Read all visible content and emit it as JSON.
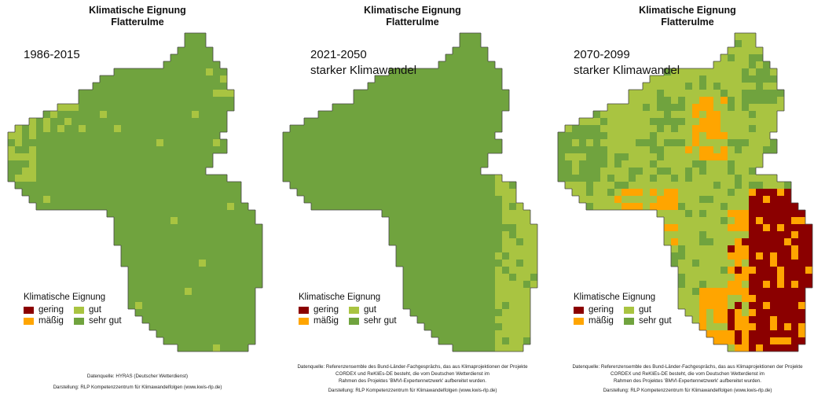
{
  "colors": {
    "gering": "#8b0000",
    "maessig": "#ffa500",
    "gut": "#a9c441",
    "sehr_gut": "#70a33e",
    "border": "#444444"
  },
  "panels": [
    {
      "title_line1": "Klimatische Eignung",
      "title_line2": "Flatterulme",
      "period_line1": "1986-2015",
      "period_line2": "",
      "legend": {
        "title": "Klimatische Eignung",
        "gering": "gering",
        "maessig": "mäßig",
        "gut": "gut",
        "sehr_gut": "sehr gut"
      },
      "source_lines": [
        "Datenquelle: HYRAS (Deutscher Wetterdienst)",
        "Darstellung: RLP Kompetenzzentrum für Klimawandelfolgen (www.kwis-rlp.de)"
      ]
    },
    {
      "title_line1": "Klimatische Eignung",
      "title_line2": "Flatterulme",
      "period_line1": "2021-2050",
      "period_line2": "starker Klimawandel",
      "legend": {
        "title": "Klimatische Eignung",
        "gering": "gering",
        "maessig": "mäßig",
        "gut": "gut",
        "sehr_gut": "sehr gut"
      },
      "source_lines": [
        "Datenquelle: Referenzensemble des Bund-Länder-Fachgesprächs, das aus Klimaprojektionen der Projekte",
        "CORDEX und ReKliEs-DE besteht, die vom Deutschen Wetterdienst im",
        "Rahmen des Projektes 'BMVI-Expertennetzwerk' aufbereitet wurden.",
        "Darstellung: RLP Kompetenzzentrum für Klimawandelfolgen (www.kwis-rlp.de)"
      ]
    },
    {
      "title_line1": "Klimatische Eignung",
      "title_line2": "Flatterulme",
      "period_line1": "2070-2099",
      "period_line2": "starker Klimawandel",
      "legend": {
        "title": "Klimatische Eignung",
        "gering": "gering",
        "maessig": "mäßig",
        "gut": "gut",
        "sehr_gut": "sehr gut"
      },
      "source_lines": [
        "Datenquelle: Referenzensemble des Bund-Länder-Fachgesprächs, das aus Klimaprojektionen der Projekte",
        "CORDEX und ReKliEs-DE besteht, die vom Deutschen Wetterdienst im",
        "Rahmen des Projektes 'BMVI-Expertennetzwerk' aufbereitet wurden.",
        "Darstellung: RLP Kompetenzzentrum für Klimawandelfolgen (www.kwis-rlp.de)"
      ]
    }
  ]
}
